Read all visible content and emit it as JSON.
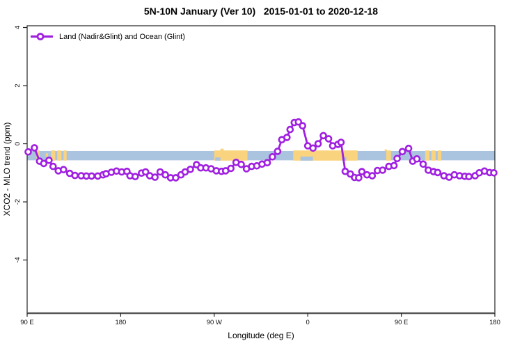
{
  "title": "5N-10N January (Ver 10)   2015-01-01 to 2020-12-18",
  "legend": {
    "label": "Land (Nadir&Glint) and Ocean (Glint)"
  },
  "colors": {
    "series_purple": "#A020E0",
    "ocean_band_blue": "#AAC4DF",
    "land_orange": "#FAD37E",
    "axis_box": "#222222",
    "bottom_axis": "#555555",
    "tick_text": "#111111"
  },
  "chart_data": {
    "type": "line",
    "title": "5N-10N January (Ver 10)   2015-01-01 to 2020-12-18",
    "xlabel": "Longitude (deg E)",
    "ylabel": "XCO2 - MLO trend (ppm)",
    "x_axis": {
      "range": [
        90,
        540
      ],
      "note": "longitude wraps eastward: 90E -> 180 -> 90W -> 0 -> 90E -> 180",
      "ticks": [
        {
          "value": 90,
          "label": "90 E"
        },
        {
          "value": 180,
          "label": "180"
        },
        {
          "value": 270,
          "label": "90 W"
        },
        {
          "value": 360,
          "label": "0"
        },
        {
          "value": 450,
          "label": "90 E"
        },
        {
          "value": 540,
          "label": "180"
        }
      ]
    },
    "y_axis": {
      "range": [
        -5.83,
        4.06
      ],
      "ticks": [
        {
          "value": 4,
          "label": "4"
        },
        {
          "value": 2,
          "label": "2"
        },
        {
          "value": 0,
          "label": "0"
        },
        {
          "value": -2,
          "label": "-2"
        },
        {
          "value": -4,
          "label": "-4"
        }
      ],
      "grid": false
    },
    "ocean_band": {
      "from": -0.57,
      "to": -0.25
    },
    "land_patches": [
      {
        "from": 99,
        "to": 102
      },
      {
        "from": 108,
        "to": 110,
        "top": -0.33,
        "bot": -0.45
      },
      {
        "from": 113,
        "to": 117
      },
      {
        "from": 119,
        "to": 123
      },
      {
        "from": 125,
        "to": 128
      },
      {
        "from": 270,
        "to": 302
      },
      {
        "from": 276,
        "to": 279,
        "top": -0.17,
        "bot": -0.24
      },
      {
        "from": 346,
        "to": 408
      },
      {
        "from": 434,
        "to": 436,
        "top": -0.19,
        "bot": -0.25
      },
      {
        "from": 435.5,
        "to": 440
      },
      {
        "from": 473,
        "to": 477
      },
      {
        "from": 479,
        "to": 483
      },
      {
        "from": 485,
        "to": 488.5
      }
    ],
    "ocean_notches": [
      {
        "from": 271,
        "to": 276,
        "top": -0.47,
        "bot": -0.58
      },
      {
        "from": 353,
        "to": 365,
        "top": -0.44,
        "bot": -0.58
      },
      {
        "from": 393,
        "to": 397,
        "top": -0.46,
        "bot": -0.58
      }
    ],
    "series": [
      {
        "name": "Land (Nadir&Glint) and Ocean (Glint)",
        "marker": "open-circle",
        "points": [
          [
            91,
            -0.28
          ],
          [
            97,
            -0.14
          ],
          [
            102,
            -0.6
          ],
          [
            106,
            -0.68
          ],
          [
            111,
            -0.57
          ],
          [
            115,
            -0.78
          ],
          [
            120,
            -0.93
          ],
          [
            125,
            -0.89
          ],
          [
            131,
            -1.02
          ],
          [
            136,
            -1.09
          ],
          [
            142,
            -1.1
          ],
          [
            147,
            -1.11
          ],
          [
            152,
            -1.11
          ],
          [
            158,
            -1.11
          ],
          [
            163,
            -1.07
          ],
          [
            166,
            -1.03
          ],
          [
            171,
            -0.98
          ],
          [
            176,
            -0.94
          ],
          [
            181,
            -0.97
          ],
          [
            186,
            -0.95
          ],
          [
            189,
            -1.1
          ],
          [
            194,
            -1.13
          ],
          [
            200,
            -1.01
          ],
          [
            204,
            -0.97
          ],
          [
            208,
            -1.1
          ],
          [
            213,
            -1.15
          ],
          [
            218,
            -0.97
          ],
          [
            223,
            -1.07
          ],
          [
            228,
            -1.17
          ],
          [
            233,
            -1.17
          ],
          [
            238,
            -1.07
          ],
          [
            242,
            -0.97
          ],
          [
            247,
            -0.88
          ],
          [
            253,
            -0.72
          ],
          [
            257,
            -0.83
          ],
          [
            262,
            -0.83
          ],
          [
            267,
            -0.86
          ],
          [
            272,
            -0.93
          ],
          [
            277,
            -0.95
          ],
          [
            281,
            -0.93
          ],
          [
            286,
            -0.85
          ],
          [
            291,
            -0.64
          ],
          [
            296,
            -0.71
          ],
          [
            301,
            -0.86
          ],
          [
            306,
            -0.78
          ],
          [
            311,
            -0.76
          ],
          [
            316,
            -0.7
          ],
          [
            321,
            -0.65
          ],
          [
            326,
            -0.45
          ],
          [
            331,
            -0.26
          ],
          [
            335,
            0.14
          ],
          [
            340,
            0.22
          ],
          [
            343,
            0.49
          ],
          [
            347,
            0.73
          ],
          [
            351,
            0.75
          ],
          [
            355,
            0.62
          ],
          [
            360,
            -0.07
          ],
          [
            365,
            -0.15
          ],
          [
            370,
            0.0
          ],
          [
            375,
            0.28
          ],
          [
            380,
            0.17
          ],
          [
            384,
            -0.07
          ],
          [
            389,
            -0.02
          ],
          [
            392,
            0.05
          ],
          [
            396,
            -0.95
          ],
          [
            401,
            -1.04
          ],
          [
            405,
            -1.16
          ],
          [
            409,
            -1.17
          ],
          [
            412,
            -0.96
          ],
          [
            417,
            -1.07
          ],
          [
            422,
            -1.1
          ],
          [
            427,
            -0.92
          ],
          [
            432,
            -0.91
          ],
          [
            438,
            -0.78
          ],
          [
            443,
            -0.75
          ],
          [
            446,
            -0.51
          ],
          [
            451,
            -0.27
          ],
          [
            457,
            -0.16
          ],
          [
            461,
            -0.6
          ],
          [
            465,
            -0.52
          ],
          [
            471,
            -0.7
          ],
          [
            476,
            -0.91
          ],
          [
            481,
            -0.96
          ],
          [
            485,
            -0.99
          ],
          [
            491,
            -1.1
          ],
          [
            496,
            -1.15
          ],
          [
            501,
            -1.07
          ],
          [
            506,
            -1.1
          ],
          [
            511,
            -1.12
          ],
          [
            515,
            -1.13
          ],
          [
            521,
            -1.1
          ],
          [
            525,
            -1.0
          ],
          [
            530,
            -0.94
          ],
          [
            535,
            -0.99
          ],
          [
            539,
            -1.0
          ]
        ]
      }
    ]
  }
}
